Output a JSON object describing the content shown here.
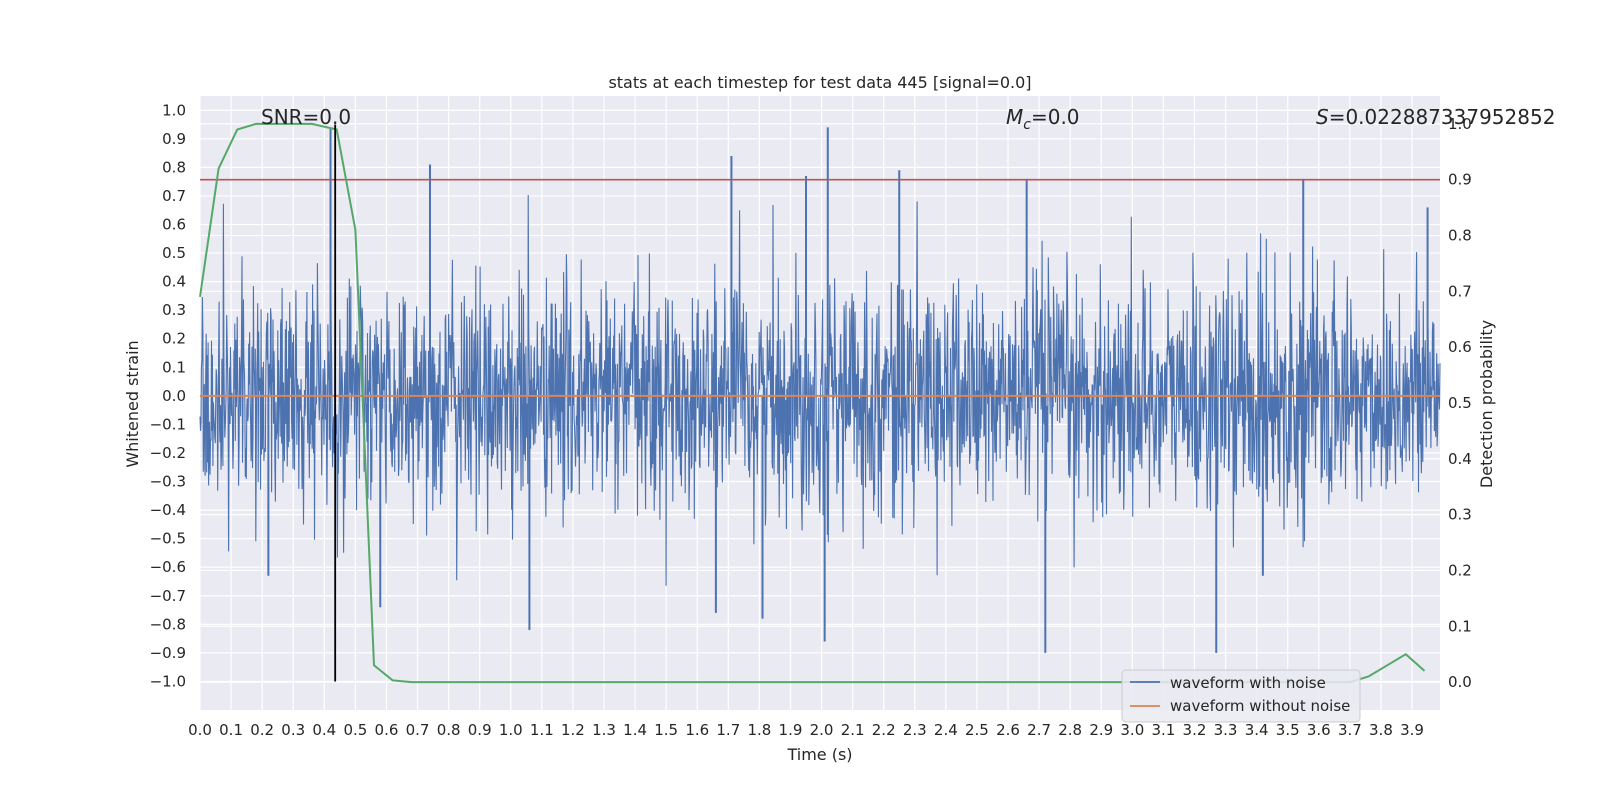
{
  "chart_data": {
    "type": "line",
    "title": "stats at each timestep for test data 445 [signal=0.0]",
    "xlabel": "Time (s)",
    "ylabel": "Whitened strain",
    "y2label": "Detection probability",
    "xlim": [
      0.0,
      3.99
    ],
    "ylim": [
      -1.1,
      1.05
    ],
    "y2lim": [
      -0.05,
      1.05
    ],
    "x_ticks": [
      "0.0",
      "0.1",
      "0.2",
      "0.3",
      "0.4",
      "0.5",
      "0.6",
      "0.7",
      "0.8",
      "0.9",
      "1.0",
      "1.1",
      "1.2",
      "1.3",
      "1.4",
      "1.5",
      "1.6",
      "1.7",
      "1.8",
      "1.9",
      "2.0",
      "2.1",
      "2.2",
      "2.3",
      "2.4",
      "2.5",
      "2.6",
      "2.7",
      "2.8",
      "2.9",
      "3.0",
      "3.1",
      "3.2",
      "3.3",
      "3.4",
      "3.5",
      "3.6",
      "3.7",
      "3.8",
      "3.9"
    ],
    "y_ticks": [
      "1.0",
      "0.9",
      "0.8",
      "0.7",
      "0.6",
      "0.5",
      "0.4",
      "0.3",
      "0.2",
      "0.1",
      "0.0",
      "−0.1",
      "−0.2",
      "−0.3",
      "−0.4",
      "−0.5",
      "−0.6",
      "−0.7",
      "−0.8",
      "−0.9",
      "−1.0"
    ],
    "y2_ticks": [
      "0.0",
      "0.1",
      "0.2",
      "0.3",
      "0.4",
      "0.5",
      "0.6",
      "0.7",
      "0.8",
      "0.9",
      "1.0"
    ],
    "grid": true,
    "legend_position": "lower-right",
    "series": [
      {
        "name": "waveform with noise",
        "axis": "left",
        "color": "#4c72b0",
        "description_of_values": "dense whitened noise, roughly within -0.45..0.45 with spikes",
        "spikes": [
          {
            "x": 0.42,
            "y": 0.94
          },
          {
            "x": 0.74,
            "y": 0.81
          },
          {
            "x": 1.71,
            "y": 0.84
          },
          {
            "x": 1.95,
            "y": 0.77
          },
          {
            "x": 2.02,
            "y": 0.94
          },
          {
            "x": 2.25,
            "y": 0.79
          },
          {
            "x": 2.66,
            "y": 0.76
          },
          {
            "x": 3.55,
            "y": 0.76
          },
          {
            "x": 3.95,
            "y": 0.66
          },
          {
            "x": 1.06,
            "y": -0.82
          },
          {
            "x": 1.81,
            "y": -0.78
          },
          {
            "x": 2.01,
            "y": -0.86
          },
          {
            "x": 2.72,
            "y": -0.9
          },
          {
            "x": 3.27,
            "y": -0.9
          },
          {
            "x": 0.58,
            "y": -0.74
          },
          {
            "x": 1.66,
            "y": -0.76
          },
          {
            "x": 0.22,
            "y": -0.63
          },
          {
            "x": 3.42,
            "y": -0.63
          }
        ]
      },
      {
        "name": "waveform without noise",
        "axis": "left",
        "color": "#dd8452",
        "x": [
          0.0,
          3.99
        ],
        "y": [
          0.0,
          0.0
        ]
      },
      {
        "name": "",
        "axis": "right",
        "color": "#55a868",
        "x": [
          0.0,
          0.06,
          0.12,
          0.18,
          0.24,
          0.3,
          0.36,
          0.44,
          0.5,
          0.56,
          0.62,
          0.68,
          0.74,
          3.7,
          3.76,
          3.82,
          3.88,
          3.94
        ],
        "y": [
          0.69,
          0.92,
          0.99,
          1.0,
          1.0,
          1.0,
          1.0,
          0.99,
          0.81,
          0.03,
          0.003,
          0.0,
          0.0,
          0.0,
          0.01,
          0.03,
          0.05,
          0.02
        ]
      }
    ],
    "hlines": [
      {
        "axis": "right",
        "y": 0.9,
        "color": "#c44e52"
      }
    ],
    "vlines": [
      {
        "x": 0.435,
        "ymin": -1.0,
        "ymax": 0.95,
        "color": "#000000"
      }
    ],
    "annotations": [
      {
        "id": "snr",
        "text": "SNR=0.0",
        "x": 0.2,
        "y": 0.97
      },
      {
        "id": "mc",
        "text": "=0.0",
        "math": "M_c",
        "x": 2.6,
        "y": 0.97
      },
      {
        "id": "s",
        "text": "=0.022887337952852",
        "math": "S",
        "x": 3.6,
        "y": 0.97
      }
    ],
    "legend": [
      {
        "label": "waveform with noise",
        "color": "#4c72b0"
      },
      {
        "label": "waveform without noise",
        "color": "#dd8452"
      }
    ]
  }
}
